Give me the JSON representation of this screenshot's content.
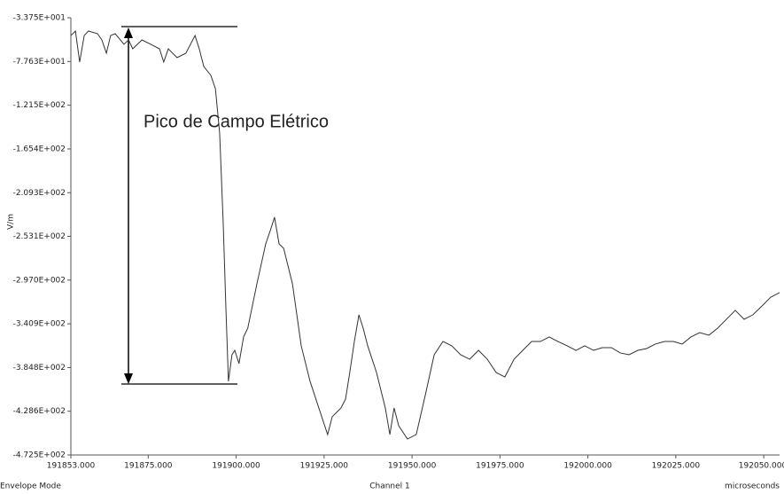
{
  "chart_data": {
    "type": "line",
    "y_label": "V/m",
    "x_label": "Channel 1",
    "x_unit": "microseconds",
    "mode": "Envelope Mode",
    "annotation": "Pico de Campo Elétrico",
    "xlim": [
      191853,
      192054.5
    ],
    "ylim": [
      -33.75,
      -472.5
    ],
    "xticks": [
      {
        "value": 191853,
        "label": "191853.000"
      },
      {
        "value": 191875,
        "label": "191875.000"
      },
      {
        "value": 191900,
        "label": "191900.000"
      },
      {
        "value": 191925,
        "label": "191925.000"
      },
      {
        "value": 191950,
        "label": "191950.000"
      },
      {
        "value": 191975,
        "label": "191975.000"
      },
      {
        "value": 192000,
        "label": "192000.000"
      },
      {
        "value": 192025,
        "label": "192025.000"
      },
      {
        "value": 192050,
        "label": "192050.000"
      }
    ],
    "yticks": [
      {
        "value": -33.75,
        "label": "-3.375E+001"
      },
      {
        "value": -77.63,
        "label": "-7.763E+001"
      },
      {
        "value": -121.5,
        "label": "-1.215E+002"
      },
      {
        "value": -165.4,
        "label": "-1.654E+002"
      },
      {
        "value": -209.3,
        "label": "-2.093E+002"
      },
      {
        "value": -253.1,
        "label": "-2.531E+002"
      },
      {
        "value": -297.0,
        "label": "-2.970E+002"
      },
      {
        "value": -340.9,
        "label": "-3.409E+002"
      },
      {
        "value": -384.8,
        "label": "-3.848E+002"
      },
      {
        "value": -428.6,
        "label": "-4.286E+002"
      },
      {
        "value": -472.5,
        "label": "-4.725E+002"
      }
    ],
    "color": "#333333",
    "x": [
      191853.0,
      191854.3,
      191855.5,
      191856.8,
      191858.0,
      191860.6,
      191861.8,
      191863.1,
      191864.3,
      191865.6,
      191868.1,
      191869.4,
      191870.6,
      191873.2,
      191875.7,
      191878.2,
      191879.4,
      191880.7,
      191883.2,
      191885.7,
      191888.3,
      191889.5,
      191890.8,
      191892.8,
      191894.1,
      191895.3,
      191896.3,
      191897.1,
      191897.8,
      191898.8,
      191899.6,
      191900.8,
      191902.1,
      191903.3,
      191905.9,
      191908.4,
      191909.7,
      191910.9,
      191912.2,
      191913.5,
      191916.0,
      191918.5,
      191921.0,
      191923.5,
      191926.0,
      191927.3,
      191929.8,
      191931.1,
      191932.3,
      191933.6,
      191934.9,
      191936.1,
      191937.4,
      191939.9,
      191942.4,
      191943.7,
      191944.9,
      191946.2,
      191948.7,
      191951.2,
      191953.8,
      191956.3,
      191958.8,
      191961.3,
      191963.8,
      191966.4,
      191968.9,
      191971.4,
      191973.9,
      191976.4,
      191979.0,
      191981.5,
      191984.0,
      191986.5,
      191989.0,
      191991.5,
      191994.1,
      191996.6,
      191999.1,
      192001.6,
      192004.1,
      192006.7,
      192009.2,
      192011.7,
      192014.2,
      192016.7,
      192019.2,
      192021.8,
      192024.3,
      192026.8,
      192029.3,
      192031.8,
      192034.4,
      192036.9,
      192039.4,
      192041.9,
      192044.4,
      192046.9,
      192049.5,
      192052.0,
      192054.5
    ],
    "values": [
      -51.6,
      -47.1,
      -78.2,
      -51.6,
      -47.1,
      -49.8,
      -56.0,
      -69.3,
      -51.6,
      -49.8,
      -60.4,
      -56.0,
      -64.9,
      -56.0,
      -60.4,
      -64.9,
      -78.2,
      -64.9,
      -73.8,
      -69.3,
      -51.6,
      -64.9,
      -82.7,
      -91.6,
      -105.0,
      -149.5,
      -238.4,
      -327.4,
      -398.6,
      -371.9,
      -367.5,
      -380.8,
      -354.1,
      -345.2,
      -300.7,
      -260.7,
      -247.3,
      -234.0,
      -260.7,
      -265.1,
      -300.7,
      -363.0,
      -398.6,
      -425.3,
      -452.0,
      -434.2,
      -425.3,
      -416.4,
      -389.7,
      -358.6,
      -331.9,
      -345.2,
      -363.0,
      -389.7,
      -425.3,
      -452.0,
      -425.3,
      -443.1,
      -456.5,
      -452.0,
      -412.0,
      -371.9,
      -358.6,
      -363.0,
      -371.9,
      -376.4,
      -367.5,
      -376.4,
      -389.7,
      -394.2,
      -376.4,
      -367.5,
      -358.6,
      -358.6,
      -354.1,
      -358.6,
      -363.0,
      -367.5,
      -363.0,
      -367.5,
      -364.8,
      -364.8,
      -370.1,
      -371.9,
      -367.5,
      -365.7,
      -361.2,
      -358.6,
      -358.6,
      -361.2,
      -354.1,
      -349.7,
      -352.3,
      -345.2,
      -336.3,
      -327.4,
      -336.3,
      -331.9,
      -323.0,
      -314.1,
      -309.6
    ]
  }
}
